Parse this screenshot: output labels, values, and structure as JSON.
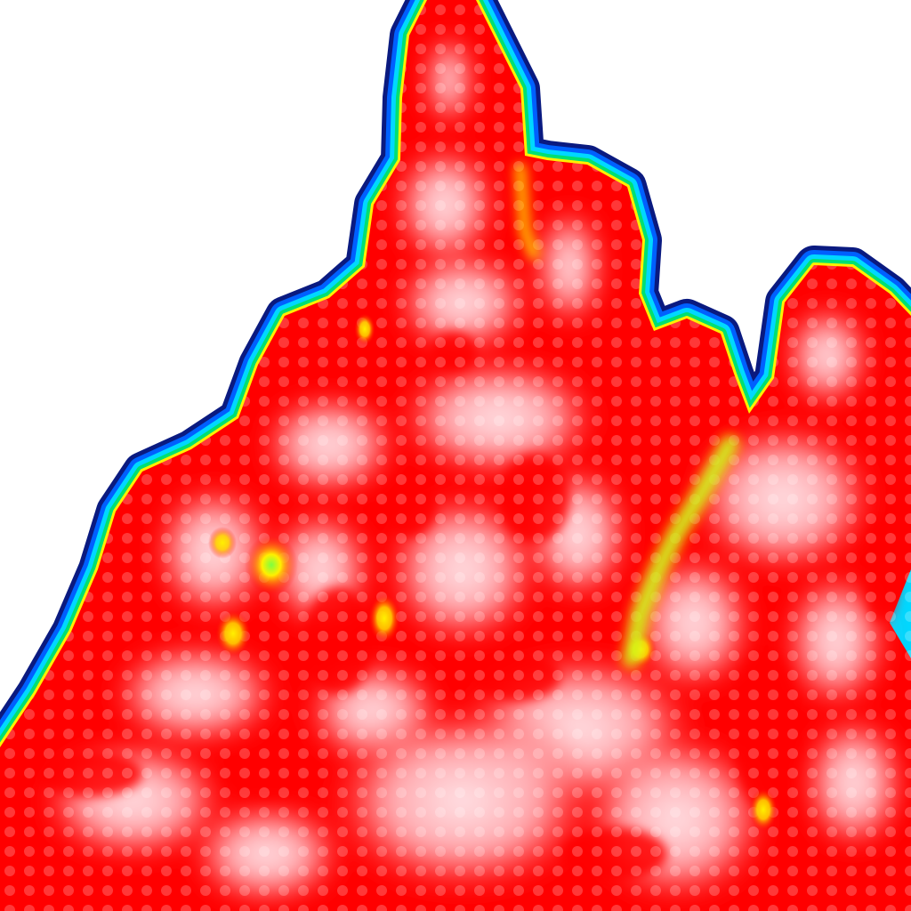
{
  "map": {
    "kind": "density-heatmap-tile",
    "colors": {
      "background": "#ffffff",
      "ramp": [
        "#0a1a80",
        "#0060ff",
        "#00d8ff",
        "#00e070",
        "#fff000",
        "#ff0000",
        "#ffe4e8"
      ]
    }
  }
}
